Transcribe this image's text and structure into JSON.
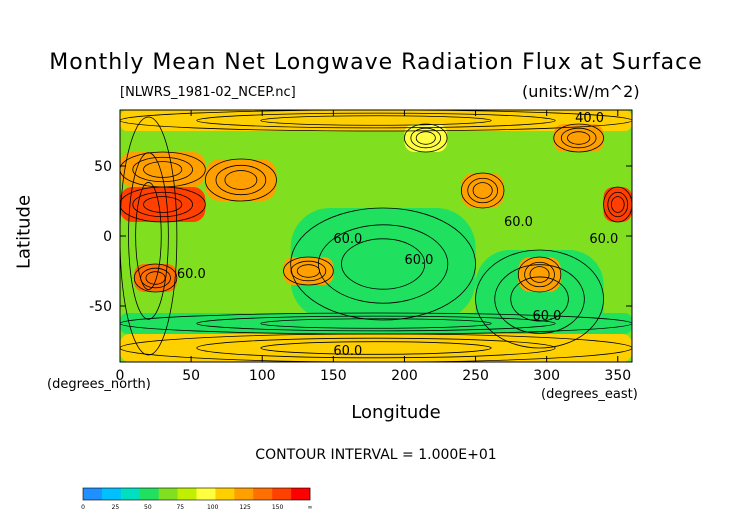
{
  "chart_data": {
    "type": "heatmap",
    "title": "Monthly Mean Net Longwave Radiation Flux at Surface",
    "file_label": "[NLWRS_1981-02_NCEP.nc]",
    "units_label": "(units:W/m^2)",
    "xlabel": "Longitude",
    "ylabel": "Latitude",
    "x_units": "(degrees_east)",
    "y_units": "(degrees_north)",
    "xlim": [
      0,
      360
    ],
    "ylim": [
      -90,
      90
    ],
    "xticks": [
      "0",
      "50",
      "100",
      "150",
      "200",
      "250",
      "300",
      "350"
    ],
    "xtick_values": [
      0,
      50,
      100,
      150,
      200,
      250,
      300,
      350
    ],
    "yticks": [
      "50",
      "0",
      "-50"
    ],
    "ytick_values": [
      50,
      0,
      -50
    ],
    "contour_interval": "CONTOUR INTERVAL = 1.000E+01",
    "contour_labels": [
      "40.0",
      "60.0",
      "60.0",
      "60.0",
      "60.0",
      "60.0",
      "60.0",
      "60.0"
    ],
    "colorbar": {
      "labels": [
        "0",
        "25",
        "50",
        "75",
        "100",
        "125",
        "150",
        "∞"
      ],
      "colors": [
        "#1e90ff",
        "#00c0ff",
        "#00e0c0",
        "#20e060",
        "#80e020",
        "#c0f000",
        "#ffff40",
        "#ffd000",
        "#ffa000",
        "#ff7000",
        "#ff4000",
        "#ff0000"
      ]
    },
    "regions": [
      {
        "lon": [
          0,
          360
        ],
        "lat": [
          -90,
          90
        ],
        "value": 55
      },
      {
        "lon": [
          0,
          40
        ],
        "lat": [
          -85,
          85
        ],
        "value": 60
      },
      {
        "lon": [
          120,
          250
        ],
        "lat": [
          -60,
          20
        ],
        "value": 40
      },
      {
        "lon": [
          250,
          340
        ],
        "lat": [
          -80,
          -10
        ],
        "value": 40
      },
      {
        "lon": [
          0,
          360
        ],
        "lat": [
          -70,
          -55
        ],
        "value": 42
      },
      {
        "lon": [
          0,
          360
        ],
        "lat": [
          -90,
          -70
        ],
        "value": 95
      },
      {
        "lon": [
          0,
          360
        ],
        "lat": [
          75,
          90
        ],
        "value": 90
      },
      {
        "lon": [
          0,
          60
        ],
        "lat": [
          10,
          35
        ],
        "value": 130
      },
      {
        "lon": [
          0,
          60
        ],
        "lat": [
          35,
          60
        ],
        "value": 100
      },
      {
        "lon": [
          60,
          110
        ],
        "lat": [
          25,
          55
        ],
        "value": 110
      },
      {
        "lon": [
          340,
          360
        ],
        "lat": [
          10,
          35
        ],
        "value": 130
      },
      {
        "lon": [
          10,
          40
        ],
        "lat": [
          -40,
          -20
        ],
        "value": 120
      },
      {
        "lon": [
          115,
          150
        ],
        "lat": [
          -35,
          -15
        ],
        "value": 110
      },
      {
        "lon": [
          240,
          270
        ],
        "lat": [
          20,
          45
        ],
        "value": 110
      },
      {
        "lon": [
          280,
          310
        ],
        "lat": [
          -40,
          -15
        ],
        "value": 100
      },
      {
        "lon": [
          200,
          230
        ],
        "lat": [
          60,
          80
        ],
        "value": 80
      },
      {
        "lon": [
          305,
          340
        ],
        "lat": [
          60,
          80
        ],
        "value": 100
      }
    ]
  }
}
